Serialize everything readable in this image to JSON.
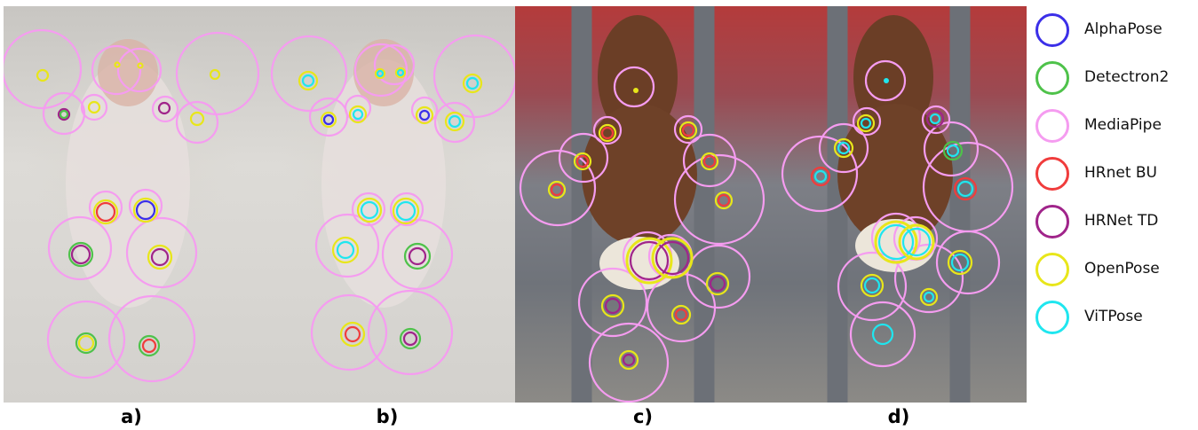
{
  "figure": {
    "panel_labels": [
      "a)",
      "b)",
      "c)",
      "d)"
    ]
  },
  "legend": {
    "items": [
      {
        "label": "AlphaPose",
        "color": "#3b2fe8"
      },
      {
        "label": "Detectron2",
        "color": "#4ec24a"
      },
      {
        "label": "MediaPipe",
        "color": "#f59cf0"
      },
      {
        "label": "HRnet BU",
        "color": "#f03c3c"
      },
      {
        "label": "HRNet TD",
        "color": "#a0248a"
      },
      {
        "label": "OpenPose",
        "color": "#e8e61a"
      },
      {
        "label": "ViTPose",
        "color": "#1fe6ef"
      }
    ]
  }
}
